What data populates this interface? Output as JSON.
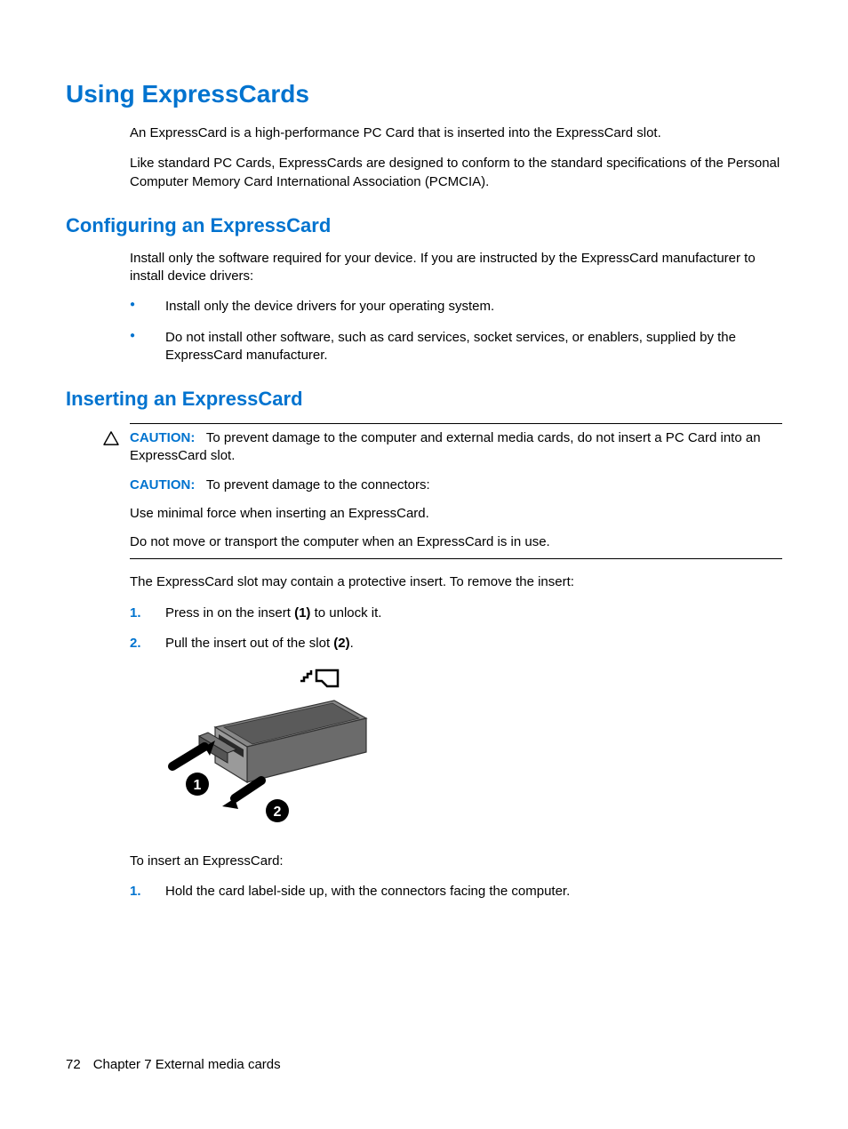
{
  "colors": {
    "heading_blue": "#0073cf",
    "bullet_blue": "#0073cf",
    "number_blue": "#0073cf",
    "caution_label": "#0073cf",
    "body_text": "#000000",
    "background": "#ffffff",
    "rule": "#000000"
  },
  "typography": {
    "h1_size_pt": 21,
    "h2_size_pt": 17,
    "body_size_pt": 11,
    "font_family": "Arial"
  },
  "heading": "Using ExpressCards",
  "intro_p1": "An ExpressCard is a high-performance PC Card that is inserted into the ExpressCard slot.",
  "intro_p2": "Like standard PC Cards, ExpressCards are designed to conform to the standard specifications of the Personal Computer Memory Card International Association (PCMCIA).",
  "section1": {
    "heading": "Configuring an ExpressCard",
    "p1": "Install only the software required for your device. If you are instructed by the ExpressCard manufacturer to install device drivers:",
    "bullets": [
      "Install only the device drivers for your operating system.",
      "Do not install other software, such as card services, socket services, or enablers, supplied by the ExpressCard manufacturer."
    ]
  },
  "section2": {
    "heading": "Inserting an ExpressCard",
    "caution": {
      "label1": "CAUTION:",
      "text1": "To prevent damage to the computer and external media cards, do not insert a PC Card into an ExpressCard slot.",
      "label2": "CAUTION:",
      "text2": "To prevent damage to the connectors:",
      "p3": "Use minimal force when inserting an ExpressCard.",
      "p4": "Do not move or transport the computer when an ExpressCard is in use."
    },
    "after_caution": "The ExpressCard slot may contain a protective insert. To remove the insert:",
    "steps_remove": [
      {
        "pre": "Press in on the insert ",
        "bold": "(1)",
        "post": " to unlock it."
      },
      {
        "pre": "Pull the insert out of the slot ",
        "bold": "(2)",
        "post": "."
      }
    ],
    "after_figure": "To insert an ExpressCard:",
    "steps_insert": [
      "Hold the card label-side up, with the connectors facing the computer."
    ]
  },
  "footer": {
    "page_number": "72",
    "chapter": "Chapter 7   External media cards"
  },
  "figure": {
    "type": "illustration",
    "description": "ExpressCard slot with protective insert being pressed (1) and pulled out (2)",
    "arrow_labels": [
      "1",
      "2"
    ],
    "card_color": "#5a5a5a",
    "slot_color": "#808080",
    "arrow_color": "#000000",
    "circle_color": "#000000"
  }
}
